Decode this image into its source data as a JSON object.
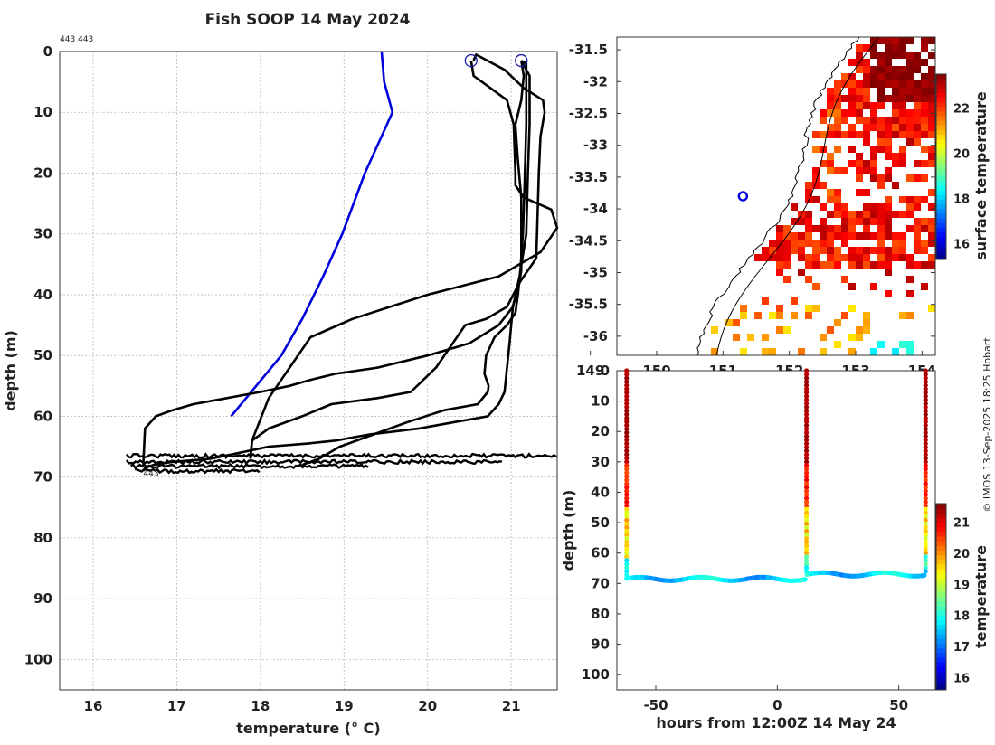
{
  "figure": {
    "title": "Fish SOOP 14 May 2024",
    "copyright": "© IMOS 13-Sep-2025 18:25 Hobart",
    "cast_ids_text": "443 443",
    "bottom_cast_label": "443"
  },
  "colors": {
    "profile_line": "#000000",
    "climatology_line": "#0000dd",
    "marker": "#1a1aa8",
    "grid": "#bbbbbb",
    "coast": "#000000"
  },
  "chart_data": [
    {
      "name": "temperature-profile",
      "type": "line",
      "xlabel": "temperature (° C)",
      "ylabel": "depth (m)",
      "xlim": [
        15.6,
        21.55
      ],
      "ylim": [
        105,
        0
      ],
      "xticks": [
        16,
        17,
        18,
        19,
        20,
        21
      ],
      "yticks": [
        0,
        10,
        20,
        30,
        40,
        50,
        60,
        70,
        80,
        90,
        100
      ],
      "series": [
        {
          "name": "climatology",
          "color": "#0000dd",
          "x": [
            19.45,
            19.48,
            19.58,
            19.25,
            18.98,
            18.75,
            18.5,
            18.25,
            17.95,
            17.65
          ],
          "y": [
            0,
            5,
            10,
            20,
            30,
            37,
            44,
            50,
            55,
            60
          ]
        },
        {
          "name": "profile-1",
          "color": "#000000",
          "x": [
            20.52,
            20.55,
            20.75,
            20.95,
            21.03,
            21.05,
            21.05,
            21.15,
            21.48,
            21.55,
            21.35,
            20.85,
            20.0,
            19.1,
            18.6,
            18.35,
            18.1,
            17.9,
            17.88
          ],
          "y": [
            1.5,
            4,
            6,
            8,
            12,
            20,
            22,
            24,
            26,
            29,
            33,
            37,
            40,
            44,
            47,
            52,
            57,
            64,
            67
          ]
        },
        {
          "name": "profile-2",
          "color": "#000000",
          "x": [
            20.55,
            20.58,
            20.92,
            21.15,
            21.38,
            21.4,
            21.35,
            21.33,
            21.3,
            21.1,
            20.95,
            20.7,
            20.45,
            20.3,
            20.1,
            19.8,
            19.4,
            18.85,
            18.5,
            18.1,
            17.9,
            17.88
          ],
          "y": [
            1.5,
            0.5,
            3,
            6,
            8,
            10,
            14,
            20,
            34,
            38,
            42,
            44,
            45,
            48,
            52,
            56,
            57,
            58,
            60,
            62,
            64,
            67
          ]
        },
        {
          "name": "profile-3",
          "color": "#000000",
          "x": [
            21.12,
            21.18,
            21.18,
            21.16,
            21.14,
            21.11,
            21.08,
            21.05,
            20.95,
            20.8,
            20.7,
            20.68,
            20.73,
            20.72,
            20.6,
            20.2,
            19.75,
            19.35,
            18.95,
            18.7,
            18.5
          ],
          "y": [
            1.5,
            2,
            12,
            22,
            30,
            36,
            40,
            43,
            45,
            47,
            50,
            53,
            55,
            56,
            58,
            59,
            61,
            63,
            65,
            67,
            68
          ]
        },
        {
          "name": "profile-4",
          "color": "#000000",
          "x": [
            21.12,
            21.22,
            21.22,
            21.2,
            21.18,
            21.1,
            21.02,
            20.98,
            20.95,
            20.92,
            20.85,
            20.72,
            20.3,
            19.9,
            19.3,
            18.9,
            18.55,
            18.1,
            17.75,
            17.4,
            16.95,
            16.72,
            16.62,
            16.6
          ],
          "y": [
            1.5,
            4,
            12,
            20,
            30,
            37,
            42,
            48,
            52,
            56,
            58,
            60,
            61,
            62,
            63,
            64,
            64.5,
            65,
            66,
            67,
            67.5,
            68,
            68.5,
            69
          ]
        },
        {
          "name": "profile-5",
          "color": "#000000",
          "x": [
            21.12,
            21.15,
            21.12,
            21.05,
            21.08,
            21.12,
            21.12,
            21.12,
            21.1,
            21.02,
            20.85,
            20.5,
            20.0,
            19.4,
            18.9,
            18.6,
            18.35,
            18.0,
            17.6,
            17.2,
            16.95,
            16.75,
            16.62,
            16.6
          ],
          "y": [
            1.5,
            4,
            8,
            12,
            18,
            24,
            32,
            36,
            38,
            42,
            45,
            48,
            50,
            52,
            53,
            54,
            55,
            56,
            57,
            58,
            59,
            60,
            62,
            68
          ]
        }
      ],
      "bottom_scatter": {
        "t_min": [
          16.4,
          16.4,
          16.45,
          16.5
        ],
        "t_max": [
          21.55,
          20.9,
          19.3,
          18.0
        ],
        "depths": [
          66.5,
          67.5,
          68.2,
          69.0
        ]
      },
      "start_markers": [
        {
          "x": 20.52,
          "y": 1.5
        },
        {
          "x": 21.12,
          "y": 1.5
        }
      ]
    },
    {
      "name": "surface-temperature-map",
      "type": "heatmap",
      "ylim": [
        -36.3,
        -31.3
      ],
      "yticks": [
        -31.5,
        -32,
        -32.5,
        -33,
        -33.5,
        -34,
        -34.5,
        -35,
        -35.5,
        -36
      ],
      "xlim": [
        149.4,
        154.2
      ],
      "xticks": [
        149,
        150,
        151,
        152,
        153,
        154
      ],
      "colorbar": {
        "label": "surface temperature",
        "min": 15.3,
        "max": 23.5,
        "ticks": [
          16,
          18,
          20,
          22
        ]
      },
      "vessel_position": {
        "lon": 151.3,
        "lat": -33.8
      }
    },
    {
      "name": "depth-time-section",
      "type": "scatter",
      "xlabel": "hours from 12:00Z 14 May 24",
      "ylabel": "depth (m)",
      "xlim": [
        -66,
        65
      ],
      "ylim": [
        105,
        0
      ],
      "xticks": [
        -50,
        0,
        50
      ],
      "yticks": [
        0,
        10,
        20,
        30,
        40,
        50,
        60,
        70,
        80,
        90,
        100
      ],
      "colorbar": {
        "label": "temperature",
        "min": 15.6,
        "max": 21.6,
        "ticks": [
          16,
          17,
          18,
          19,
          20,
          21
        ]
      },
      "casts": [
        {
          "hour": -62,
          "bottom": 68
        },
        {
          "hour": 12,
          "bottom": 67
        },
        {
          "hour": 61,
          "bottom": 67
        }
      ]
    }
  ]
}
